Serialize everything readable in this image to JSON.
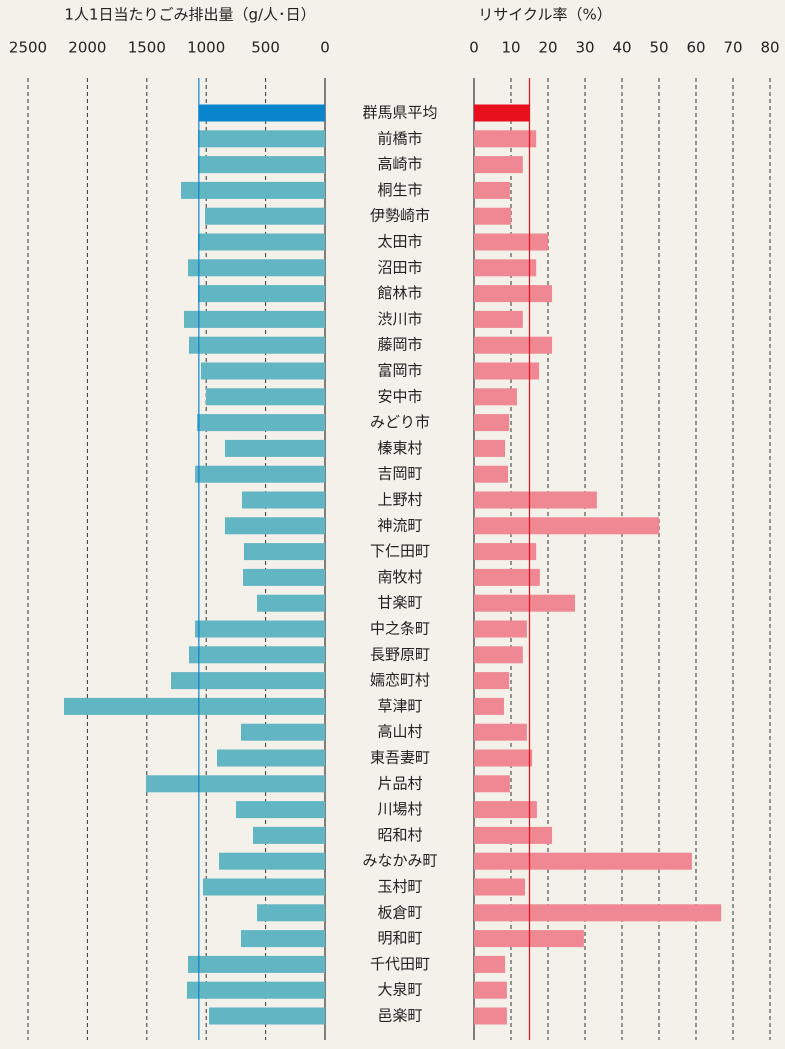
{
  "chart_data": {
    "type": "bar",
    "categories": [
      "群馬県平均",
      "前橋市",
      "高崎市",
      "桐生市",
      "伊勢崎市",
      "太田市",
      "沼田市",
      "館林市",
      "渋川市",
      "藤岡市",
      "富岡市",
      "安中市",
      "みどり市",
      "榛東村",
      "吉岡町",
      "上野村",
      "神流町",
      "下仁田町",
      "南牧村",
      "甘楽町",
      "中之条町",
      "長野原町",
      "嬬恋町村",
      "草津町",
      "高山村",
      "東吾妻町",
      "片品村",
      "川場村",
      "昭和村",
      "みなかみ町",
      "玉村町",
      "板倉町",
      "明和町",
      "千代田町",
      "大泉町",
      "邑楽町"
    ],
    "series": [
      {
        "name": "1人1日当たりごみ排出量（g/人･日）",
        "color": "#62b5c3",
        "highlight_color": "#0a84cc",
        "reversed": true,
        "xlim": [
          0,
          2500
        ],
        "xticks": [
          0,
          500,
          1000,
          1500,
          2000,
          2500
        ],
        "values": [
          1062,
          1069,
          1069,
          1212,
          1010,
          1069,
          1153,
          1069,
          1187,
          1145,
          1044,
          1002,
          1077,
          842,
          1094,
          699,
          842,
          682,
          690,
          572,
          1094,
          1145,
          1296,
          2197,
          707,
          909,
          1507,
          749,
          606,
          892,
          1027,
          572,
          707,
          1153,
          1162,
          976
        ]
      },
      {
        "name": "リサイクル率（%）",
        "color": "#ef8893",
        "highlight_color": "#e8101d",
        "reversed": false,
        "xlim": [
          0,
          80
        ],
        "xticks": [
          0,
          10,
          20,
          30,
          40,
          50,
          60,
          70,
          80
        ],
        "values": [
          15,
          16.8,
          13.2,
          9.7,
          10,
          20,
          16.8,
          21.1,
          13.2,
          21.1,
          17.6,
          11.6,
          9.5,
          8.4,
          9.2,
          33.2,
          50,
          16.8,
          17.8,
          27.3,
          14.3,
          13.2,
          9.5,
          8.1,
          14.3,
          15.7,
          9.7,
          17,
          21.1,
          58.9,
          13.8,
          66.8,
          29.7,
          8.4,
          8.9,
          8.9
        ]
      }
    ],
    "grid": true
  }
}
